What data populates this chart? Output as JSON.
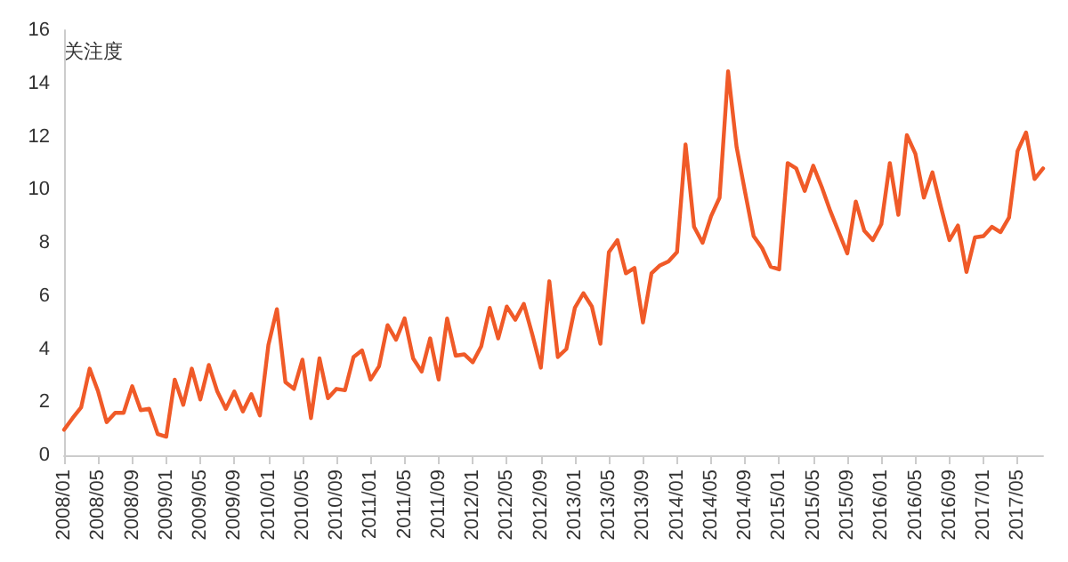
{
  "chart_data": {
    "type": "line",
    "ylabel": "关注度",
    "categories": [
      "2008/01",
      null,
      null,
      null,
      "2008/05",
      null,
      null,
      null,
      "2008/09",
      null,
      null,
      null,
      "2009/01",
      null,
      null,
      null,
      "2009/05",
      null,
      null,
      null,
      "2009/09",
      null,
      null,
      null,
      "2010/01",
      null,
      null,
      null,
      "2010/05",
      null,
      null,
      null,
      "2010/09",
      null,
      null,
      null,
      "2011/01",
      null,
      null,
      null,
      "2011/05",
      null,
      null,
      null,
      "2011/09",
      null,
      null,
      null,
      "2012/01",
      null,
      null,
      null,
      "2012/05",
      null,
      null,
      null,
      "2012/09",
      null,
      null,
      null,
      "2013/01",
      null,
      null,
      null,
      "2013/05",
      null,
      null,
      null,
      "2013/09",
      null,
      null,
      null,
      "2014/01",
      null,
      null,
      null,
      "2014/05",
      null,
      null,
      null,
      "2014/09",
      null,
      null,
      null,
      "2015/01",
      null,
      null,
      null,
      "2015/05",
      null,
      null,
      null,
      "2015/09",
      null,
      null,
      null,
      "2016/01",
      null,
      null,
      null,
      "2016/05",
      null,
      null,
      null,
      "2016/09",
      null,
      null,
      null,
      "2017/01",
      null,
      null,
      null,
      "2017/05",
      null,
      null,
      null
    ],
    "series": [
      {
        "color": "#f05a28",
        "values": [
          0.96,
          1.4,
          1.8,
          3.26,
          2.4,
          1.25,
          1.6,
          1.6,
          2.6,
          1.7,
          1.75,
          0.8,
          0.7,
          2.85,
          1.9,
          3.26,
          2.1,
          3.4,
          2.4,
          1.75,
          2.4,
          1.65,
          2.3,
          1.5,
          4.15,
          5.5,
          2.75,
          2.5,
          3.6,
          1.4,
          3.65,
          2.15,
          2.5,
          2.45,
          3.7,
          3.95,
          2.85,
          3.35,
          4.9,
          4.35,
          5.15,
          3.65,
          3.15,
          4.4,
          2.85,
          5.15,
          3.75,
          3.8,
          3.5,
          4.1,
          5.55,
          4.4,
          5.6,
          5.1,
          5.7,
          4.55,
          3.3,
          6.55,
          3.7,
          4.0,
          5.55,
          6.1,
          5.6,
          4.2,
          7.65,
          8.1,
          6.85,
          7.05,
          5.0,
          6.85,
          7.15,
          7.3,
          7.65,
          11.7,
          8.6,
          8.0,
          9.0,
          9.7,
          14.45,
          11.6,
          9.9,
          8.25,
          7.8,
          7.1,
          7.0,
          11.0,
          10.8,
          9.95,
          10.9,
          10.1,
          9.2,
          8.4,
          7.6,
          9.55,
          8.45,
          8.1,
          8.7,
          11.0,
          9.05,
          12.05,
          11.35,
          9.7,
          10.65,
          9.35,
          8.1,
          8.65,
          6.9,
          8.2,
          8.25,
          8.6,
          8.4,
          8.95,
          11.45,
          12.15,
          10.4,
          10.8
        ]
      }
    ],
    "ylim": [
      0,
      16
    ],
    "yticks": [
      0,
      2,
      4,
      6,
      8,
      10,
      12,
      14,
      16
    ],
    "grid": false,
    "marker": "none",
    "line_style": "solid"
  }
}
